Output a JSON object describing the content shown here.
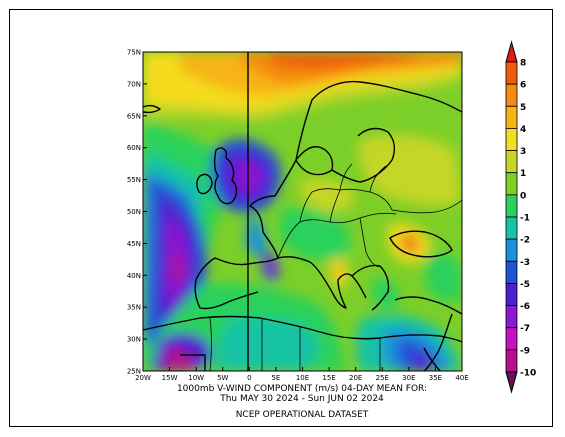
{
  "caption": {
    "line1": "1000mb V-WIND COMPONENT (m/s)    04-DAY MEAN FOR:",
    "line2": "Thu MAY 30 2024 - Sun JUN 02 2024",
    "dataset": "NCEP OPERATIONAL DATASET"
  },
  "axes": {
    "lat_labels": [
      "75N",
      "70N",
      "65N",
      "60N",
      "55N",
      "50N",
      "45N",
      "40N",
      "35N",
      "30N",
      "25N"
    ],
    "lon_labels": [
      "20W",
      "15W",
      "10W",
      "5W",
      "0",
      "5E",
      "10E",
      "15E",
      "20E",
      "25E",
      "30E",
      "35E",
      "40E"
    ]
  },
  "colorbar": {
    "levels": [
      "8",
      "6",
      "5",
      "4",
      "3",
      "1",
      "0",
      "-1",
      "-2",
      "-3",
      "-5",
      "-6",
      "-7",
      "-9",
      "-10"
    ],
    "colors": [
      "#e21a1a",
      "#f05a10",
      "#f58a10",
      "#f6b414",
      "#f4dc1e",
      "#c4d628",
      "#7ccf28",
      "#2bd15c",
      "#16c3a4",
      "#1a92d9",
      "#2251d6",
      "#4e1fd2",
      "#8e18cf",
      "#c113c1",
      "#b0128f",
      "#6e0e56"
    ]
  },
  "map": {
    "field": "1000mb V-WIND COMPONENT",
    "units": "m/s"
  }
}
